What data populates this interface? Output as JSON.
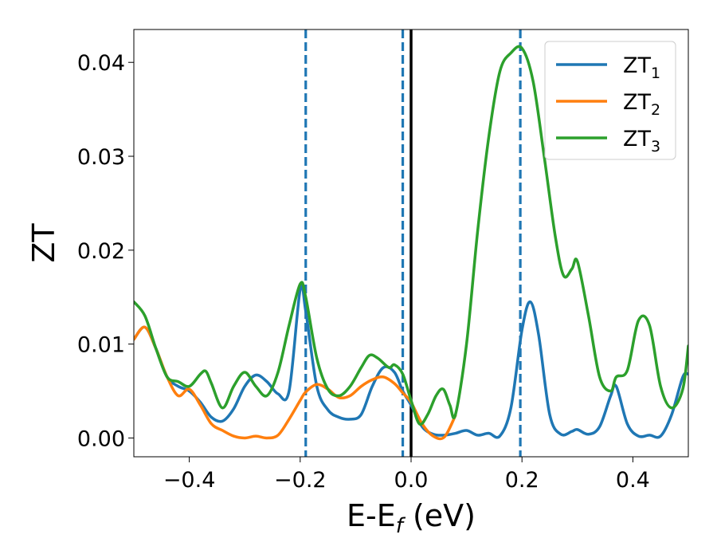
{
  "chart_data": {
    "type": "line",
    "xlabel_main": "E-E",
    "xlabel_sub": "f",
    "xlabel_unit": " (eV)",
    "ylabel": "ZT",
    "xlim": [
      -0.5,
      0.5
    ],
    "ylim": [
      -0.002,
      0.0435
    ],
    "x_ticks": [
      -0.4,
      -0.2,
      0.0,
      0.2,
      0.4
    ],
    "x_tick_labels": [
      "−0.4",
      "−0.2",
      "0.0",
      "0.2",
      "0.4"
    ],
    "y_ticks": [
      0.0,
      0.01,
      0.02,
      0.03,
      0.04
    ],
    "y_tick_labels": [
      "0.00",
      "0.01",
      "0.02",
      "0.03",
      "0.04"
    ],
    "grid": false,
    "legend_placement": "upper right",
    "vlines": [
      {
        "x": -0.19,
        "style": "dashed",
        "color": "#1f77b4"
      },
      {
        "x": -0.015,
        "style": "dashed",
        "color": "#1f77b4"
      },
      {
        "x": 0.0,
        "style": "solid",
        "color": "#000000"
      },
      {
        "x": 0.197,
        "style": "dashed",
        "color": "#1f77b4"
      }
    ],
    "series": [
      {
        "name": "ZT",
        "sub": "1",
        "color": "#1f77b4",
        "x": [
          -0.5,
          -0.48,
          -0.46,
          -0.44,
          -0.42,
          -0.4,
          -0.38,
          -0.36,
          -0.34,
          -0.32,
          -0.3,
          -0.28,
          -0.26,
          -0.24,
          -0.22,
          -0.2,
          -0.19,
          -0.17,
          -0.15,
          -0.13,
          -0.11,
          -0.09,
          -0.07,
          -0.05,
          -0.03,
          -0.015,
          0.0,
          0.02,
          0.04,
          0.06,
          0.08,
          0.1,
          0.12,
          0.14,
          0.16,
          0.18,
          0.2,
          0.215,
          0.23,
          0.25,
          0.27,
          0.29,
          0.3,
          0.32,
          0.34,
          0.36,
          0.37,
          0.39,
          0.41,
          0.43,
          0.45,
          0.47,
          0.49,
          0.5
        ],
        "y": [
          0.0105,
          0.0118,
          0.0095,
          0.0065,
          0.0055,
          0.005,
          0.0038,
          0.0022,
          0.0018,
          0.0031,
          0.0055,
          0.0067,
          0.006,
          0.0047,
          0.005,
          0.0158,
          0.0135,
          0.0055,
          0.003,
          0.0022,
          0.002,
          0.0025,
          0.0055,
          0.0075,
          0.007,
          0.005,
          0.0035,
          0.0012,
          0.0004,
          0.0003,
          0.0005,
          0.0008,
          0.0003,
          0.0005,
          0.0002,
          0.0032,
          0.0115,
          0.0145,
          0.011,
          0.0025,
          0.0004,
          0.0007,
          0.0009,
          0.0004,
          0.0012,
          0.0045,
          0.0055,
          0.0015,
          0.0002,
          0.0003,
          0.0002,
          0.0025,
          0.0065,
          0.0068
        ]
      },
      {
        "name": "ZT",
        "sub": "2",
        "color": "#ff7f0e",
        "x": [
          -0.5,
          -0.48,
          -0.46,
          -0.44,
          -0.42,
          -0.4,
          -0.38,
          -0.36,
          -0.34,
          -0.32,
          -0.3,
          -0.28,
          -0.26,
          -0.24,
          -0.22,
          -0.2,
          -0.19,
          -0.17,
          -0.15,
          -0.13,
          -0.11,
          -0.09,
          -0.07,
          -0.05,
          -0.03,
          -0.015,
          0.0,
          0.02,
          0.04,
          0.06,
          0.08
        ],
        "y": [
          0.0105,
          0.0118,
          0.0095,
          0.0065,
          0.0045,
          0.0052,
          0.0035,
          0.0015,
          0.0008,
          0.0002,
          0.0,
          0.0002,
          0.0,
          0.0003,
          0.002,
          0.004,
          0.0049,
          0.0057,
          0.0052,
          0.0043,
          0.0045,
          0.0055,
          0.0062,
          0.0065,
          0.0058,
          0.0048,
          0.0038,
          0.0015,
          0.0002,
          0.0001,
          0.0024
        ]
      },
      {
        "name": "ZT",
        "sub": "3",
        "color": "#2ca02c",
        "x": [
          -0.5,
          -0.48,
          -0.46,
          -0.44,
          -0.42,
          -0.4,
          -0.38,
          -0.37,
          -0.36,
          -0.34,
          -0.32,
          -0.3,
          -0.28,
          -0.26,
          -0.24,
          -0.22,
          -0.2,
          -0.19,
          -0.17,
          -0.15,
          -0.13,
          -0.11,
          -0.09,
          -0.075,
          -0.06,
          -0.04,
          -0.03,
          -0.015,
          0.0,
          0.015,
          0.03,
          0.045,
          0.058,
          0.07,
          0.08,
          0.1,
          0.12,
          0.14,
          0.16,
          0.18,
          0.2,
          0.22,
          0.24,
          0.26,
          0.275,
          0.29,
          0.3,
          0.32,
          0.34,
          0.36,
          0.37,
          0.39,
          0.41,
          0.43,
          0.45,
          0.47,
          0.49,
          0.5
        ],
        "y": [
          0.0145,
          0.013,
          0.0095,
          0.0065,
          0.006,
          0.0055,
          0.0068,
          0.0071,
          0.0058,
          0.0032,
          0.0055,
          0.007,
          0.0055,
          0.0045,
          0.007,
          0.012,
          0.0164,
          0.015,
          0.0085,
          0.0052,
          0.0045,
          0.0055,
          0.0075,
          0.0088,
          0.0085,
          0.0075,
          0.0078,
          0.0068,
          0.004,
          0.0015,
          0.0025,
          0.0045,
          0.0052,
          0.0035,
          0.0025,
          0.01,
          0.022,
          0.032,
          0.039,
          0.041,
          0.0415,
          0.038,
          0.03,
          0.0215,
          0.0173,
          0.018,
          0.0188,
          0.013,
          0.0065,
          0.005,
          0.0065,
          0.0072,
          0.0125,
          0.012,
          0.0055,
          0.0032,
          0.0052,
          0.0098
        ]
      }
    ]
  }
}
